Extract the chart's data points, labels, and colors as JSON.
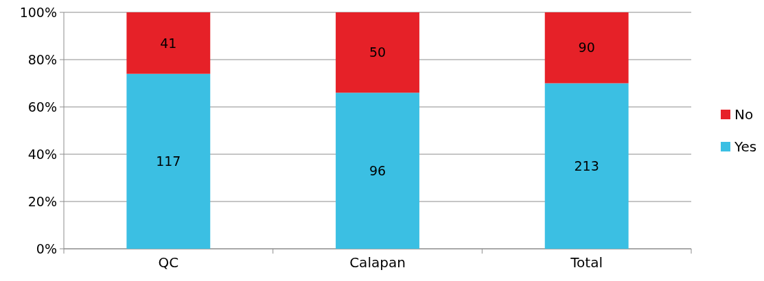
{
  "chart_data": {
    "type": "bar",
    "stacked": true,
    "categories": [
      "QC",
      "Calapan",
      "Total"
    ],
    "series": [
      {
        "name": "Yes",
        "color": "#3bbfe3",
        "values": [
          74,
          66,
          70
        ]
      },
      {
        "name": "No",
        "color": "#e62128",
        "values": [
          26,
          34,
          30
        ]
      }
    ],
    "annotations": [
      "117",
      "96",
      "213",
      "41",
      "50",
      "90"
    ],
    "ylim": [
      0,
      100
    ],
    "yticks": [
      {
        "value": 0,
        "label": "0%"
      },
      {
        "value": 20,
        "label": "20%"
      },
      {
        "value": 40,
        "label": "40%"
      },
      {
        "value": 60,
        "label": "60%"
      },
      {
        "value": 80,
        "label": "80%"
      },
      {
        "value": 100,
        "label": "100%"
      }
    ],
    "grid": "y",
    "legend": "right"
  }
}
